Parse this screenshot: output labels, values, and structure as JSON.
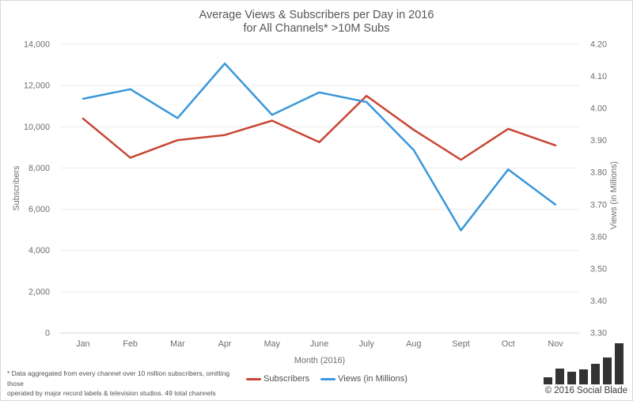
{
  "chart": {
    "title_line1": "Average Views & Subscribers per Day in 2016",
    "title_line2": "for All Channels* >10M Subs",
    "left_axis_title": "Subscribers",
    "right_axis_title": "Views (in Millions)",
    "x_axis_title": "Month (2016)"
  },
  "chart_data": {
    "type": "line",
    "title": "Average Views & Subscribers per Day in 2016 for All Channels* >10M Subs",
    "categories": [
      "Jan",
      "Feb",
      "Mar",
      "Apr",
      "May",
      "June",
      "July",
      "Aug",
      "Sept",
      "Oct",
      "Nov"
    ],
    "series": [
      {
        "name": "Subscribers",
        "axis": "left",
        "color": "#c84634",
        "values": [
          10400,
          8500,
          9350,
          9600,
          10300,
          9250,
          11500,
          9850,
          8400,
          9900,
          9100
        ]
      },
      {
        "name": "Views (in Millions)",
        "axis": "right",
        "color": "#3897db",
        "values": [
          4.03,
          4.06,
          3.97,
          4.14,
          3.98,
          4.05,
          4.02,
          3.87,
          3.62,
          3.81,
          3.7
        ]
      }
    ],
    "left_axis": {
      "label": "Subscribers",
      "min": 0,
      "max": 14000,
      "step": 2000
    },
    "right_axis": {
      "label": "Views (in Millions)",
      "min": 3.3,
      "max": 4.2,
      "step": 0.1,
      "decimals": 2
    },
    "xlabel": "Month (2016)",
    "grid": true,
    "legend_position": "bottom"
  },
  "footnote": {
    "line1": "* Data aggregated from every channel over 10 million subscribers, omitting those",
    "line2": "operated by major record labels & television studios. 49 total channels included."
  },
  "branding": {
    "copyright": "© 2016 Social Blade",
    "logo_bar_heights": [
      9,
      20,
      16,
      19,
      26,
      34,
      52
    ]
  },
  "colors": {
    "subscribers_line": "#c84634",
    "views_line": "#3897db",
    "gridline": "#ececec",
    "axis_line": "#d6d6d6",
    "tick_text": "#6d6d71",
    "title_text": "#56565a",
    "logo_bars": "#333333"
  }
}
